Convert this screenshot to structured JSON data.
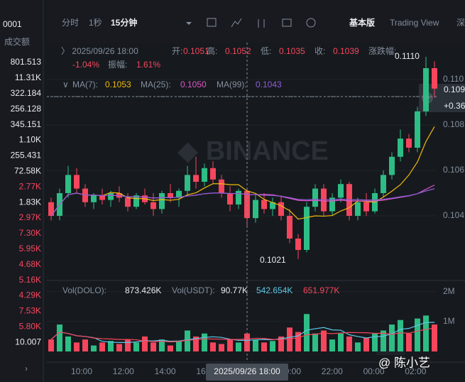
{
  "left_list": {
    "header": "0001",
    "column": "成交额",
    "rows": [
      {
        "text": "801.513",
        "color": "#eaecef"
      },
      {
        "text": "11.31K",
        "color": "#eaecef"
      },
      {
        "text": "322.184",
        "color": "#eaecef"
      },
      {
        "text": "256.128",
        "color": "#eaecef"
      },
      {
        "text": "345.151",
        "color": "#eaecef"
      },
      {
        "text": "1.10K",
        "color": "#eaecef"
      },
      {
        "text": "255.431",
        "color": "#eaecef"
      },
      {
        "text": "72.58K",
        "color": "#eaecef"
      },
      {
        "text": "2.77K",
        "color": "#f6465d"
      },
      {
        "text": "1.83K",
        "color": "#eaecef"
      },
      {
        "text": "2.97K",
        "color": "#f6465d"
      },
      {
        "text": "7.30K",
        "color": "#f6465d"
      },
      {
        "text": "5.95K",
        "color": "#f6465d"
      },
      {
        "text": "4.68K",
        "color": "#f6465d"
      },
      {
        "text": "5.16K",
        "color": "#f6465d"
      },
      {
        "text": "4.29K",
        "color": "#f6465d"
      },
      {
        "text": "7.53K",
        "color": "#f6465d"
      },
      {
        "text": "5.80K",
        "color": "#f6465d"
      },
      {
        "text": "10.007",
        "color": "#eaecef"
      }
    ]
  },
  "toolbar": {
    "intervals": [
      "分时",
      "1秒",
      "15分钟"
    ],
    "views": [
      "基本版",
      "Trading View",
      "深"
    ]
  },
  "info": {
    "time": "2025/09/26 18:00",
    "open_label": "开:",
    "open": "0.1051",
    "high_label": "高:",
    "high": "0.1052",
    "low_label": "低:",
    "low": "0.1035",
    "close_label": "收:",
    "close": "0.1039",
    "change_label": "涨跌幅:",
    "change": "-1.04%",
    "amp_label": "振幅:",
    "amp": "1.61%"
  },
  "ma": [
    {
      "name": "MA(7):",
      "value": "0.1053",
      "color": "#f0b90b",
      "period": 7
    },
    {
      "name": "MA(25):",
      "value": "0.1050",
      "color": "#e056c8",
      "period": 25
    },
    {
      "name": "MA(99):",
      "value": "0.1043",
      "color": "#8f5bd8",
      "period": 99
    }
  ],
  "chart": {
    "up_color": "#2ebd85",
    "down_color": "#f6465d",
    "ylim": [
      0.1015,
      0.1115
    ],
    "yticks": [
      0.104,
      0.106,
      0.108,
      {
        "value": 0.11,
        "label": "0.110"
      }
    ],
    "current_price": "0.109",
    "current_change": "+0.36",
    "high_note": "0.1110",
    "low_note": "0.1021",
    "candles": [
      [
        0.1046,
        0.1048,
        0.1038,
        0.104
      ],
      [
        0.104,
        0.1052,
        0.1038,
        0.105
      ],
      [
        0.105,
        0.1062,
        0.1048,
        0.1058
      ],
      [
        0.1058,
        0.1061,
        0.105,
        0.1052
      ],
      [
        0.1052,
        0.1054,
        0.1044,
        0.1046
      ],
      [
        0.1046,
        0.105,
        0.1043,
        0.1049
      ],
      [
        0.1049,
        0.1052,
        0.1045,
        0.1047
      ],
      [
        0.1047,
        0.1051,
        0.1044,
        0.105
      ],
      [
        0.105,
        0.1053,
        0.1046,
        0.1048
      ],
      [
        0.1048,
        0.105,
        0.1042,
        0.1044
      ],
      [
        0.1044,
        0.105,
        0.1043,
        0.1049
      ],
      [
        0.1049,
        0.1052,
        0.1045,
        0.1046
      ],
      [
        0.1046,
        0.105,
        0.104,
        0.1043
      ],
      [
        0.1043,
        0.1051,
        0.1041,
        0.105
      ],
      [
        0.105,
        0.1054,
        0.1046,
        0.1048
      ],
      [
        0.1048,
        0.1052,
        0.1044,
        0.1051
      ],
      [
        0.1051,
        0.1062,
        0.1049,
        0.1058
      ],
      [
        0.1058,
        0.1066,
        0.1052,
        0.1055
      ],
      [
        0.1055,
        0.1063,
        0.1053,
        0.1061
      ],
      [
        0.1061,
        0.1064,
        0.1054,
        0.1056
      ],
      [
        0.1056,
        0.1058,
        0.1048,
        0.105
      ],
      [
        0.105,
        0.1053,
        0.1042,
        0.1045
      ],
      [
        0.1045,
        0.1052,
        0.1043,
        0.1051
      ],
      [
        0.1051,
        0.1052,
        0.1035,
        0.1039
      ],
      [
        0.1039,
        0.1049,
        0.1037,
        0.1047
      ],
      [
        0.1047,
        0.105,
        0.1041,
        0.1043
      ],
      [
        0.1043,
        0.1048,
        0.104,
        0.1046
      ],
      [
        0.1046,
        0.1049,
        0.1038,
        0.104
      ],
      [
        0.104,
        0.1043,
        0.1028,
        0.103
      ],
      [
        0.103,
        0.1032,
        0.1021,
        0.1025
      ],
      [
        0.1025,
        0.1046,
        0.1024,
        0.1044
      ],
      [
        0.1044,
        0.1054,
        0.1042,
        0.1052
      ],
      [
        0.1052,
        0.1054,
        0.104,
        0.1042
      ],
      [
        0.1042,
        0.105,
        0.104,
        0.1048
      ],
      [
        0.1048,
        0.1056,
        0.1046,
        0.1054
      ],
      [
        0.1054,
        0.1055,
        0.1038,
        0.104
      ],
      [
        0.104,
        0.1048,
        0.1038,
        0.1046
      ],
      [
        0.1046,
        0.105,
        0.104,
        0.1042
      ],
      [
        0.1042,
        0.1052,
        0.1041,
        0.105
      ],
      [
        0.105,
        0.106,
        0.1048,
        0.1058
      ],
      [
        0.1058,
        0.1068,
        0.1056,
        0.1066
      ],
      [
        0.1066,
        0.1078,
        0.1064,
        0.1074
      ],
      [
        0.1074,
        0.1076,
        0.1068,
        0.107
      ],
      [
        0.107,
        0.1088,
        0.1068,
        0.1086
      ],
      [
        0.1086,
        0.111,
        0.1084,
        0.1105
      ],
      [
        0.1105,
        0.1108,
        0.1092,
        0.1096
      ]
    ],
    "volume": {
      "label": "Vol(DOLO):",
      "value": "873.426K",
      "label2": "Vol(USDT):",
      "value2": "90.77K",
      "ma1": "542.654K",
      "ma1_color": "#5fc8e8",
      "ma2": "651.977K",
      "ma2_color": "#f6465d",
      "ylim": [
        0,
        2.3
      ],
      "yticks": [
        {
          "value": 1,
          "label": "1M"
        },
        {
          "value": 2,
          "label": "2M"
        }
      ],
      "values": [
        0.4,
        0.9,
        0.5,
        0.3,
        0.4,
        0.2,
        0.3,
        0.35,
        0.25,
        0.4,
        0.3,
        0.5,
        0.3,
        0.4,
        0.2,
        0.35,
        0.7,
        0.5,
        0.6,
        0.3,
        0.25,
        0.4,
        0.3,
        0.6,
        0.4,
        0.3,
        0.35,
        0.5,
        0.8,
        0.65,
        1.25,
        0.6,
        0.7,
        0.4,
        0.6,
        0.5,
        0.3,
        0.45,
        0.6,
        0.7,
        0.9,
        1.05,
        0.6,
        1.1,
        1.2,
        0.9
      ]
    },
    "time_labels": [
      "10:00",
      "12:00",
      "14:00",
      "16:00",
      "18:00",
      "20:00",
      "22:00",
      "00:00",
      "02:00"
    ],
    "crosshair_label": "2025/09/26 18:00",
    "crosshair_index": 23
  },
  "watermark": "@ 陈小艺"
}
